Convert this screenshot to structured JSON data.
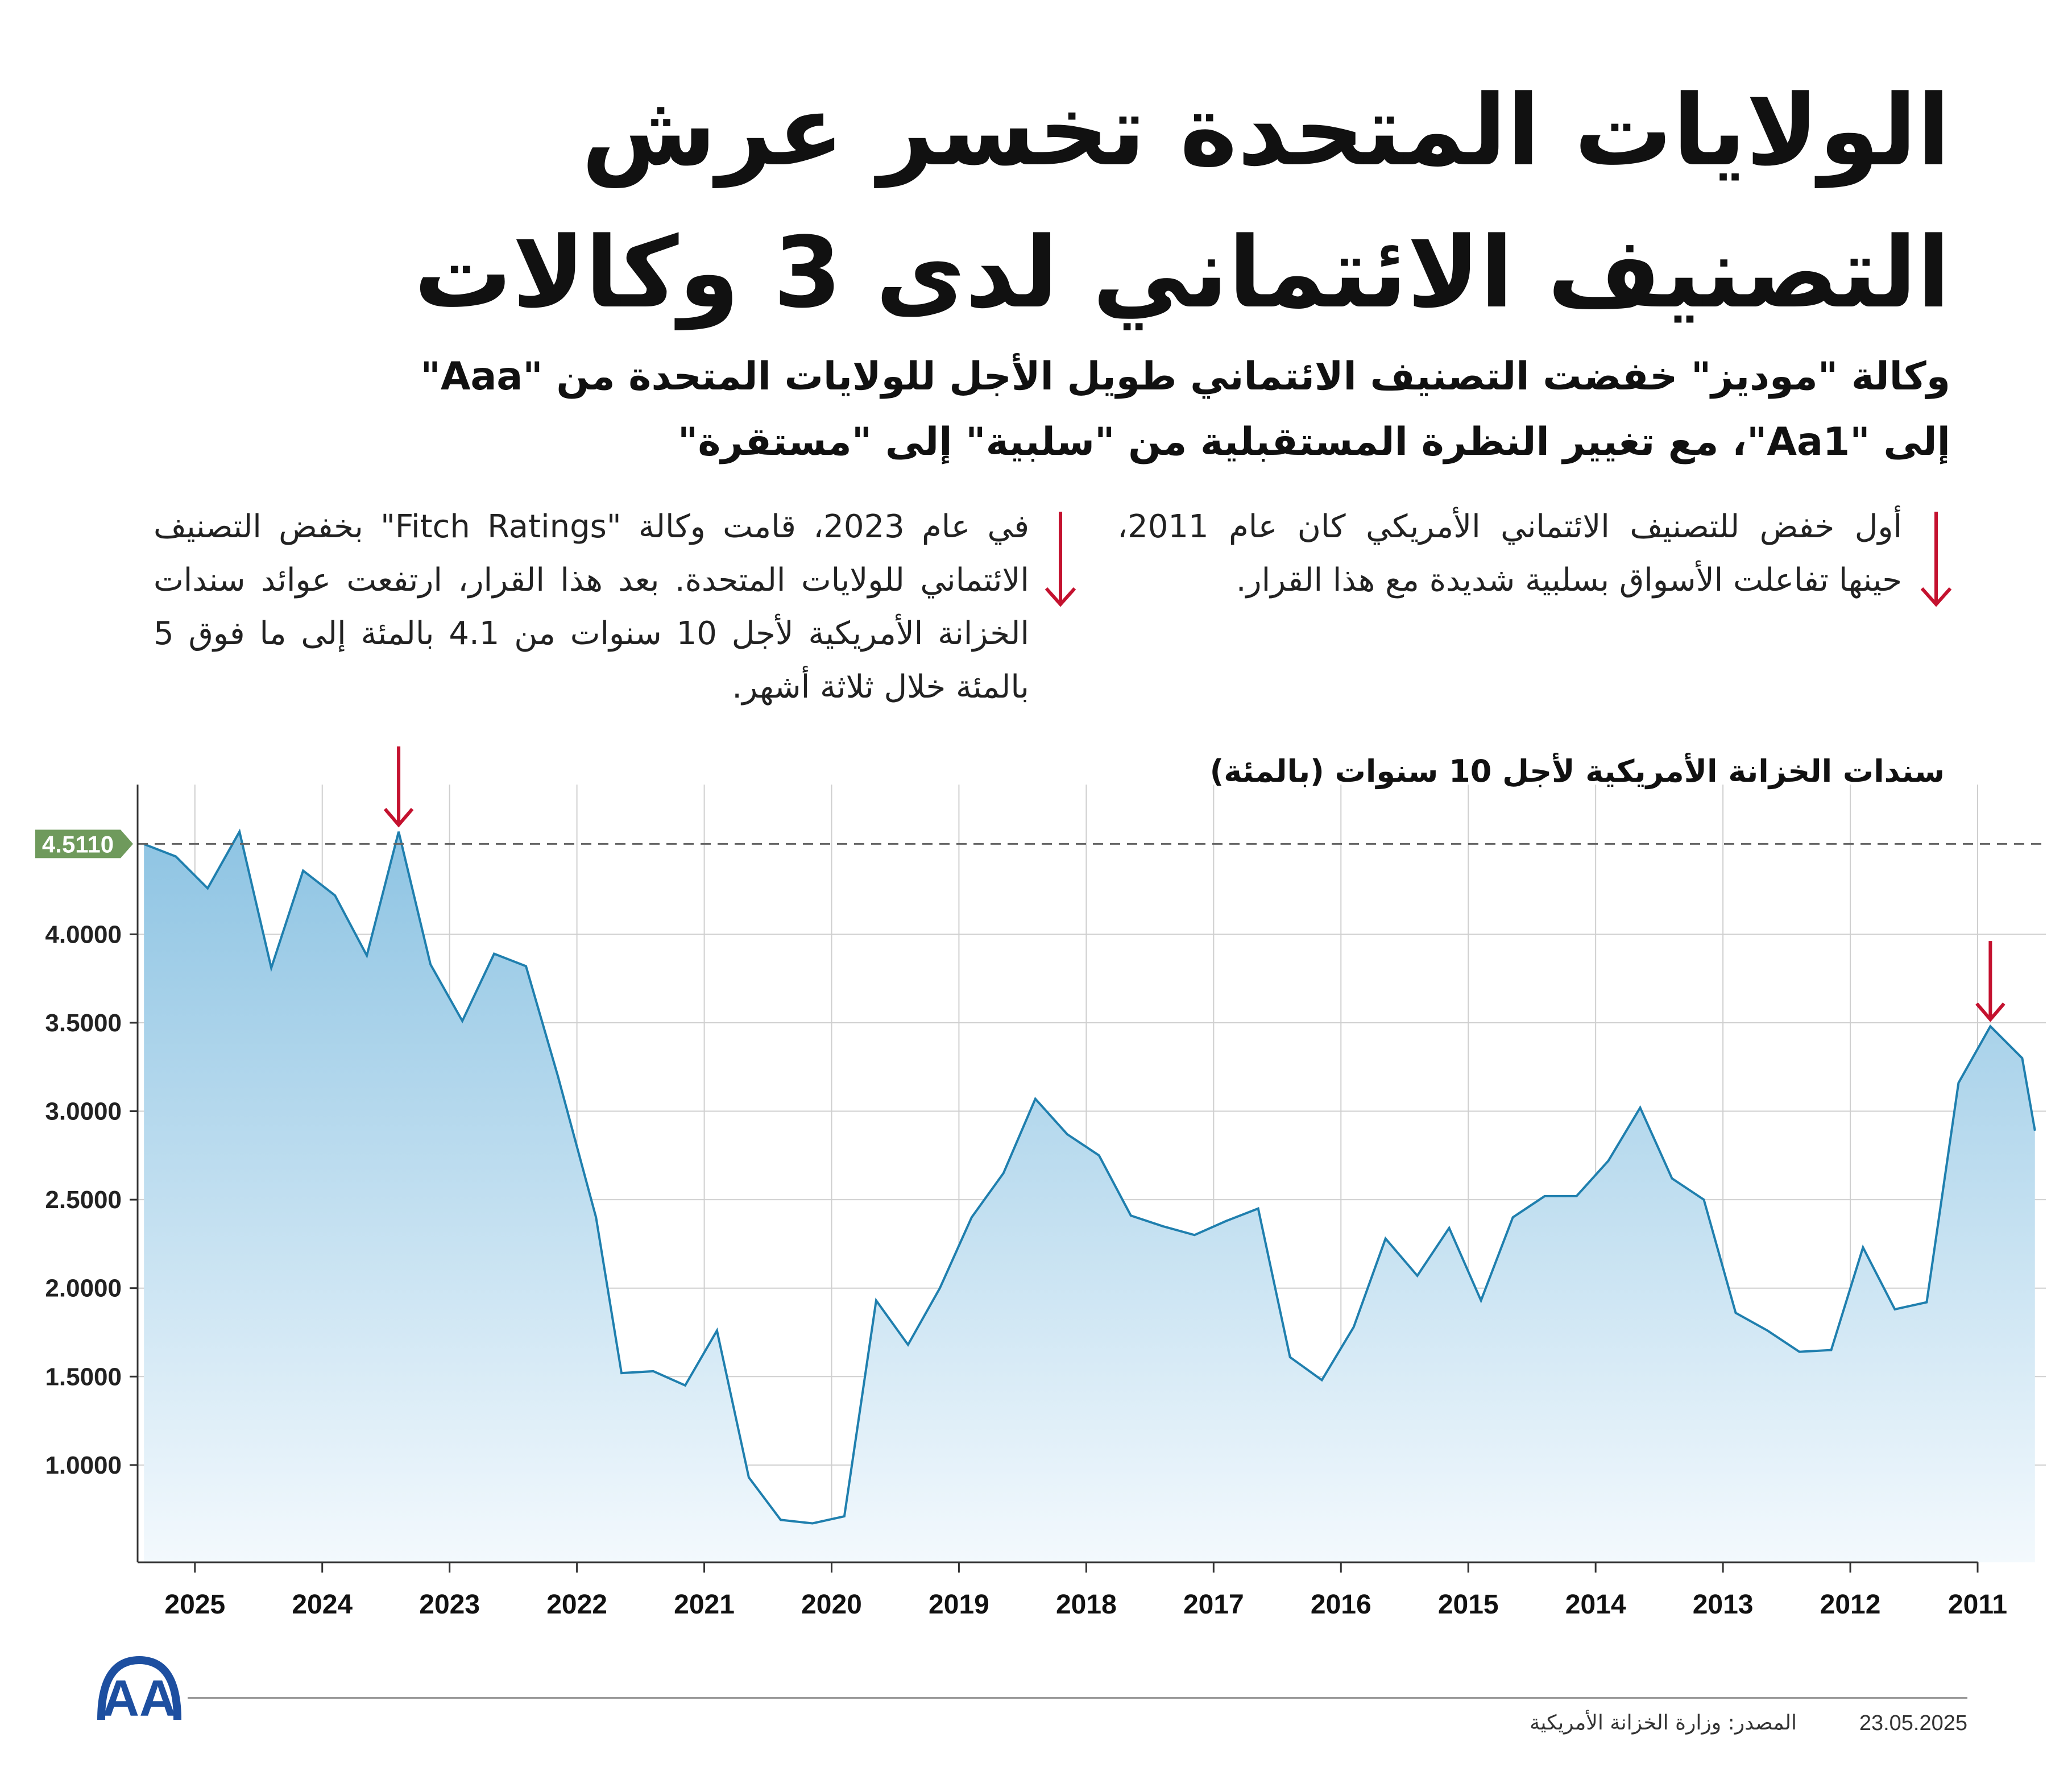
{
  "header": {
    "title": "الولايات المتحدة تخسر عرش التصنيف الائتماني لدى 3 وكالات",
    "subtitle": "وكالة \"موديز\" خفضت التصنيف الائتماني طويل الأجل للولايات المتحدة من \"Aaa\" إلى \"Aa1\"، مع تغيير النظرة المستقبلية من \"سلبية\" إلى \"مستقرة\""
  },
  "notes": {
    "note_2011": "أول خفض للتصنيف الائتماني الأمريكي كان عام 2011، حينها تفاعلت الأسواق بسلبية شديدة مع هذا القرار.",
    "note_2023": "في عام 2023، قامت وكالة \"Fitch Ratings\" بخفض التصنيف الائتماني للولايات المتحدة. بعد هذا القرار، ارتفعت عوائد سندات الخزانة الأمريكية لأجل 10 سنوات من 4.1 بالمئة إلى ما فوق 5 بالمئة خلال ثلاثة أشهر."
  },
  "colors": {
    "line": "#1f7fae",
    "fill_top": "#8ec4e3",
    "fill_bottom": "#f3f9fd",
    "arrow": "#c4122f",
    "badge": "#6f9a5c",
    "grid": "#cfcfcf"
  },
  "chart_data": {
    "type": "area",
    "title": "سندات الخزانة الأمريكية لأجل 10 سنوات (بالمئة)",
    "x_direction": "reversed (newest on the left)",
    "xlim": [
      2011.0,
      2025.45
    ],
    "ylim": [
      0.45,
      4.75
    ],
    "y_ticks": [
      {
        "value": 1.0,
        "label": "1.0000"
      },
      {
        "value": 1.5,
        "label": "1.5000"
      },
      {
        "value": 2.0,
        "label": "2.0000"
      },
      {
        "value": 2.5,
        "label": "2.5000"
      },
      {
        "value": 3.0,
        "label": "3.0000"
      },
      {
        "value": 3.5,
        "label": "3.5000"
      },
      {
        "value": 4.0,
        "label": "4.0000"
      }
    ],
    "x_ticks": [
      {
        "value": 2025,
        "label": "2025"
      },
      {
        "value": 2024,
        "label": "2024"
      },
      {
        "value": 2023,
        "label": "2023"
      },
      {
        "value": 2022,
        "label": "2022"
      },
      {
        "value": 2021,
        "label": "2021"
      },
      {
        "value": 2020,
        "label": "2020"
      },
      {
        "value": 2019,
        "label": "2019"
      },
      {
        "value": 2018,
        "label": "2018"
      },
      {
        "value": 2017,
        "label": "2017"
      },
      {
        "value": 2016,
        "label": "2016"
      },
      {
        "value": 2015,
        "label": "2015"
      },
      {
        "value": 2014,
        "label": "2014"
      },
      {
        "value": 2013,
        "label": "2013"
      },
      {
        "value": 2012,
        "label": "2012"
      },
      {
        "value": 2011,
        "label": "2011"
      }
    ],
    "current_value": {
      "value": 4.511,
      "label": "4.5110"
    },
    "grid": true,
    "series": [
      {
        "points": [
          [
            2025.4,
            4.51
          ],
          [
            2025.15,
            4.44
          ],
          [
            2024.9,
            4.26
          ],
          [
            2024.65,
            4.58
          ],
          [
            2024.4,
            3.81
          ],
          [
            2024.15,
            4.36
          ],
          [
            2023.9,
            4.22
          ],
          [
            2023.65,
            3.88
          ],
          [
            2023.4,
            4.58
          ],
          [
            2023.15,
            3.83
          ],
          [
            2022.9,
            3.51
          ],
          [
            2022.65,
            3.89
          ],
          [
            2022.4,
            3.82
          ],
          [
            2022.15,
            3.2
          ],
          [
            2021.85,
            2.4
          ],
          [
            2021.65,
            1.52
          ],
          [
            2021.4,
            1.53
          ],
          [
            2021.15,
            1.45
          ],
          [
            2020.9,
            1.76
          ],
          [
            2020.65,
            0.93
          ],
          [
            2020.4,
            0.69
          ],
          [
            2020.15,
            0.67
          ],
          [
            2019.9,
            0.71
          ],
          [
            2019.65,
            1.93
          ],
          [
            2019.4,
            1.68
          ],
          [
            2019.15,
            2.0
          ],
          [
            2018.9,
            2.4
          ],
          [
            2018.65,
            2.65
          ],
          [
            2018.4,
            3.07
          ],
          [
            2018.15,
            2.87
          ],
          [
            2017.9,
            2.75
          ],
          [
            2017.65,
            2.41
          ],
          [
            2017.4,
            2.35
          ],
          [
            2017.15,
            2.3
          ],
          [
            2016.9,
            2.38
          ],
          [
            2016.65,
            2.45
          ],
          [
            2016.4,
            1.61
          ],
          [
            2016.15,
            1.48
          ],
          [
            2015.9,
            1.78
          ],
          [
            2015.65,
            2.28
          ],
          [
            2015.4,
            2.07
          ],
          [
            2015.15,
            2.34
          ],
          [
            2014.9,
            1.93
          ],
          [
            2014.65,
            2.4
          ],
          [
            2014.4,
            2.52
          ],
          [
            2014.15,
            2.52
          ],
          [
            2013.9,
            2.72
          ],
          [
            2013.65,
            3.02
          ],
          [
            2013.4,
            2.62
          ],
          [
            2013.15,
            2.5
          ],
          [
            2012.9,
            1.86
          ],
          [
            2012.65,
            1.76
          ],
          [
            2012.4,
            1.64
          ],
          [
            2012.15,
            1.65
          ],
          [
            2011.9,
            2.23
          ],
          [
            2011.65,
            1.88
          ],
          [
            2011.4,
            1.92
          ],
          [
            2011.15,
            3.16
          ],
          [
            2010.9,
            3.48
          ],
          [
            2010.65,
            3.3
          ],
          [
            2010.55,
            2.89
          ]
        ]
      }
    ],
    "markers": [
      {
        "x": 2023.4,
        "y": 4.58
      },
      {
        "x": 2010.9,
        "y": 3.48
      }
    ]
  },
  "footer": {
    "source": "المصدر: وزارة الخزانة الأمريكية",
    "date": "23.05.2025",
    "logo_text": "AA"
  }
}
